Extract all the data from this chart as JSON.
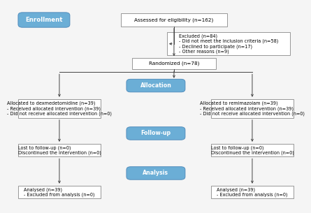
{
  "bg_color": "#f5f5f5",
  "box_border_color": "#888888",
  "blue_box_color": "#6baed6",
  "blue_box_text_color": "#ffffff",
  "white_box_bg": "#ffffff",
  "arrow_color": "#444444",
  "font_size": 5.2,
  "blue_font_size": 6.0,
  "enrollment_text": "Enrollment",
  "eligibility_text": "Assessed for eligibility (n=162)",
  "excluded_text": "Excluded (n=84)\n- Did not meet the inclusion criteria (n=58)\n- Declined to participate (n=17)\n- Other reasons (n=9)",
  "randomized_text": "Randomized (n=78)",
  "allocation_text": "Allocation",
  "dex_alloc_text": "Allocated to dexmedetomidine (n=39)\n- Received allocated intervention (n=39)\n- Did not receive allocated intervention (n=0)",
  "rem_alloc_text": "Allocated to remimazolam (n=39)\n- Received allocated intervention (n=39)\n- Did not receive allocated intervention (n=0)",
  "followup_text": "Follow-up",
  "dex_fu_text": "Lost to follow-up (n=0)\nDiscontinued the intervention (n=0)",
  "rem_fu_text": "Lost to follow-up (n=0)\nDiscontinued the intervention (n=0)",
  "analysis_text": "Analysis",
  "dex_an_text": "Analysed (n=39)\n- Excluded from analysis (n=0)",
  "rem_an_text": "Analysed (n=39)\n- Excluded from analysis (n=0)"
}
